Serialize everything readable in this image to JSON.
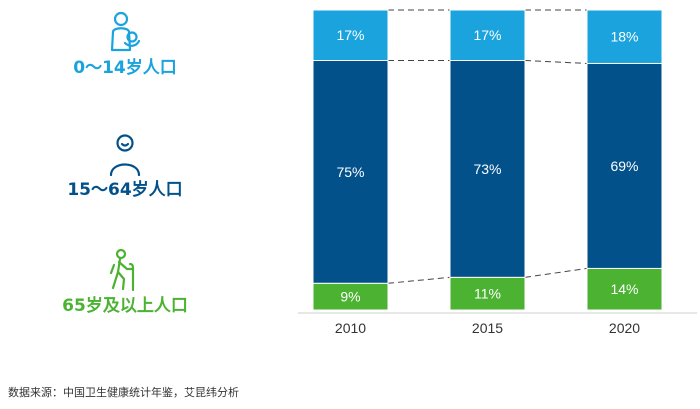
{
  "colors": {
    "young": "#1aa3dd",
    "working": "#02518a",
    "elderly": "#4bb232",
    "axis_text": "#333333",
    "connector": "#444444"
  },
  "legend": [
    {
      "label": "0～14岁人口",
      "icon": "mother-baby-icon",
      "color": "#1aa3dd"
    },
    {
      "label": "15～64岁人口",
      "icon": "person-icon",
      "color": "#02518a"
    },
    {
      "label": "65岁及以上人口",
      "icon": "elderly-cane-icon",
      "color": "#4bb232"
    }
  ],
  "chart_data": {
    "type": "bar",
    "stacked": true,
    "categories": [
      "2010",
      "2015",
      "2020"
    ],
    "series": [
      {
        "key": "elderly",
        "values": [
          9,
          11,
          14
        ],
        "labels": [
          "9%",
          "11%",
          "14%"
        ],
        "color": "#4bb232"
      },
      {
        "key": "working",
        "values": [
          75,
          73,
          69
        ],
        "labels": [
          "75%",
          "73%",
          "69%"
        ],
        "color": "#02518a"
      },
      {
        "key": "young",
        "values": [
          17,
          17,
          18
        ],
        "labels": [
          "17%",
          "17%",
          "18%"
        ],
        "color": "#1aa3dd"
      }
    ],
    "connector_lines": "dashed",
    "grid": false
  },
  "source_text": "数据来源：中国卫生健康统计年鉴，艾昆纬分析"
}
